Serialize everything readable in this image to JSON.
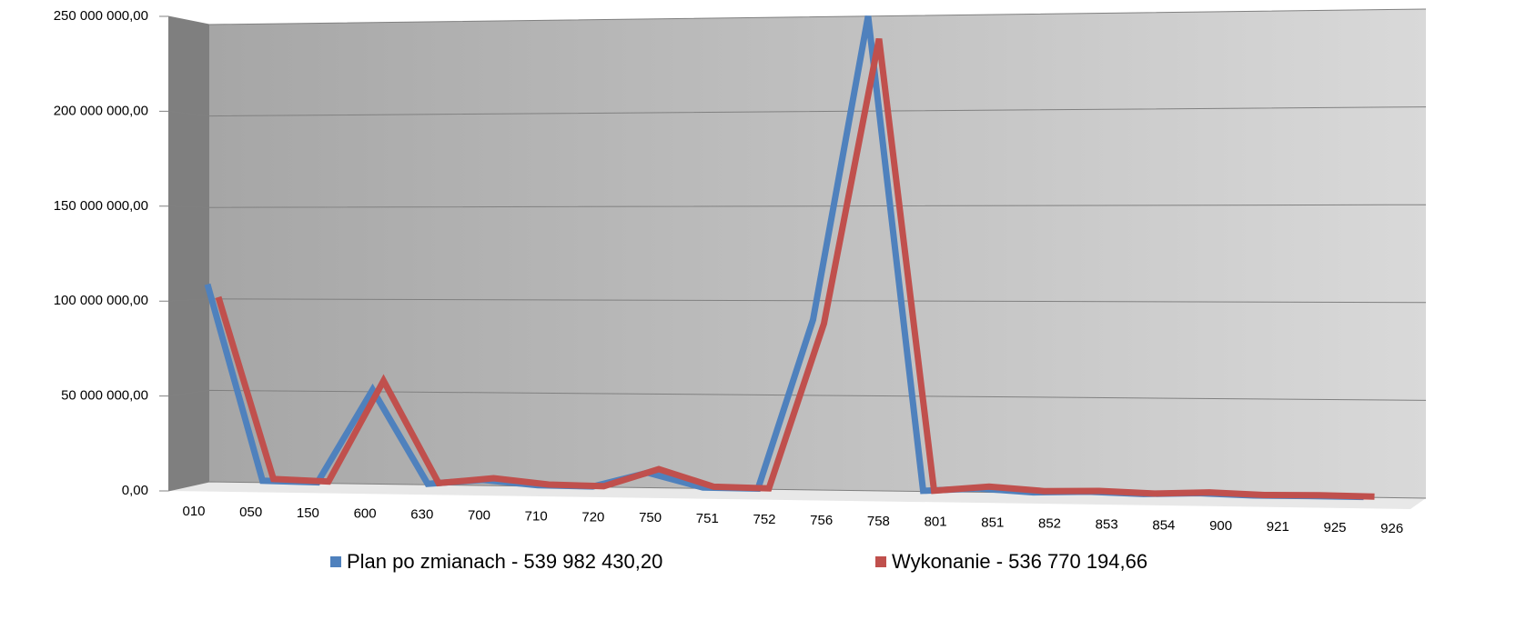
{
  "chart_data": {
    "type": "line",
    "categories": [
      "010",
      "050",
      "150",
      "600",
      "630",
      "700",
      "710",
      "720",
      "750",
      "751",
      "752",
      "756",
      "758",
      "801",
      "851",
      "852",
      "853",
      "854",
      "900",
      "921",
      "925",
      "926"
    ],
    "series": [
      {
        "name": "Plan po zmianach - 539 982 430,20",
        "color": "#4f81bd",
        "values": [
          108000000,
          1000000,
          500000,
          51000000,
          500000,
          3000000,
          500000,
          300000,
          8000000,
          500000,
          300000,
          90000000,
          250000000,
          300000,
          2000000,
          300000,
          1000000,
          200000,
          1000000,
          200000,
          300000,
          200000
        ]
      },
      {
        "name": "Wykonanie - 536 770 194,66",
        "color": "#c0504d",
        "values": [
          101000000,
          2000000,
          1000000,
          56000000,
          1000000,
          4000000,
          1000000,
          500000,
          10000000,
          1000000,
          500000,
          88000000,
          238000000,
          500000,
          3000000,
          1000000,
          1500000,
          500000,
          1500000,
          500000,
          800000,
          500000
        ]
      }
    ],
    "ylim": [
      0,
      250000000
    ],
    "yticks": [
      {
        "value": 0,
        "label": "0,00"
      },
      {
        "value": 50000000,
        "label": "50 000 000,00"
      },
      {
        "value": 100000000,
        "label": "100 000 000,00"
      },
      {
        "value": 150000000,
        "label": "150 000 000,00"
      },
      {
        "value": 200000000,
        "label": "200 000 000,00"
      },
      {
        "value": 250000000,
        "label": "250 000 000,00"
      }
    ],
    "grid": true,
    "legend": "bottom"
  }
}
